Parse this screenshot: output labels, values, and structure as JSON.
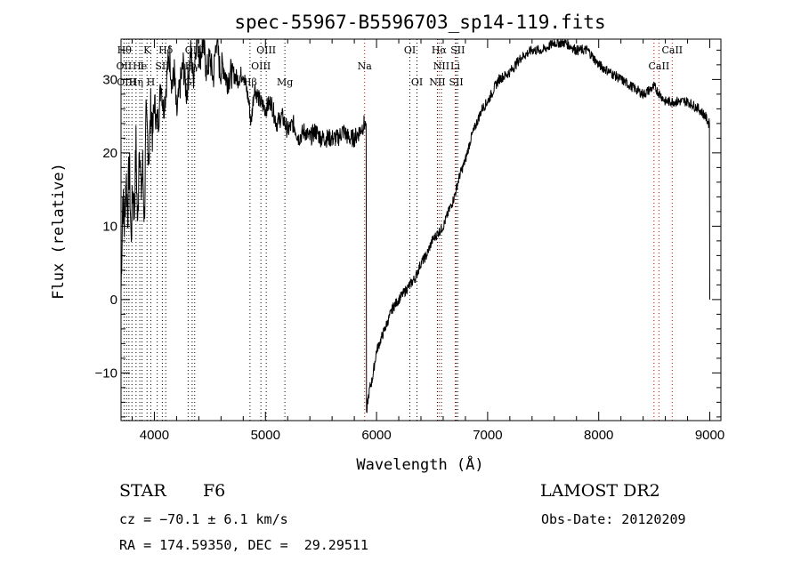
{
  "chart_data": {
    "type": "line",
    "title": "spec-55967-B5596703_sp14-119.fits",
    "xlabel": "Wavelength (Å)",
    "ylabel": "Flux (relative)",
    "xlim": [
      3700,
      9100
    ],
    "ylim": [
      -16.5,
      35.5
    ],
    "xticks": [
      4000,
      5000,
      6000,
      7000,
      8000,
      9000
    ],
    "yticks": [
      -10,
      0,
      10,
      20,
      30
    ],
    "grid": false,
    "series": [
      {
        "color": "#000000",
        "x": [
          3700,
          3715,
          3730,
          3745,
          3760,
          3775,
          3790,
          3805,
          3820,
          3835,
          3850,
          3865,
          3880,
          3895,
          3910,
          3925,
          3940,
          3955,
          3970,
          3985,
          4000,
          4020,
          4040,
          4060,
          4080,
          4100,
          4120,
          4140,
          4160,
          4180,
          4200,
          4230,
          4260,
          4290,
          4310,
          4330,
          4350,
          4380,
          4410,
          4440,
          4470,
          4500,
          4530,
          4560,
          4590,
          4620,
          4650,
          4700,
          4750,
          4800,
          4850,
          4870,
          4900,
          4950,
          5000,
          5050,
          5100,
          5150,
          5200,
          5250,
          5300,
          5350,
          5400,
          5450,
          5500,
          5550,
          5600,
          5650,
          5700,
          5750,
          5800,
          5850,
          5890,
          5900,
          5910,
          5920,
          5940,
          5960,
          5980,
          6000,
          6050,
          6100,
          6150,
          6200,
          6250,
          6300,
          6350,
          6400,
          6450,
          6500,
          6550,
          6600,
          6650,
          6700,
          6750,
          6800,
          6850,
          6900,
          6950,
          7000,
          7100,
          7200,
          7300,
          7400,
          7500,
          7600,
          7700,
          7800,
          7900,
          8000,
          8100,
          8200,
          8300,
          8400,
          8500,
          8600,
          8700,
          8800,
          8900,
          8960,
          8990,
          9000
        ],
        "values": [
          1,
          14,
          10,
          17,
          12,
          19,
          8,
          15,
          12,
          21,
          9,
          23,
          14,
          18,
          11,
          24,
          22,
          20,
          27,
          22,
          27,
          24,
          25,
          30,
          26,
          28,
          32,
          33,
          29,
          31,
          25,
          29,
          32,
          28,
          31,
          34,
          30,
          36,
          33,
          35,
          31,
          33,
          30,
          36,
          31,
          32,
          30,
          31,
          30,
          31,
          27,
          24,
          29,
          27,
          26,
          27,
          24,
          25,
          23,
          24,
          22,
          23,
          22,
          23,
          22,
          22,
          22,
          22,
          23,
          22,
          22,
          23,
          24,
          24,
          -16,
          -14,
          -12,
          -11,
          -9,
          -7,
          -5,
          -3,
          -1,
          0,
          1,
          2,
          3,
          5,
          6,
          8,
          9,
          10,
          12,
          14,
          17,
          19,
          22,
          24,
          26,
          27,
          30,
          31,
          33,
          34,
          34,
          35,
          35,
          34,
          34,
          32,
          31,
          30,
          29,
          28,
          29,
          27,
          27,
          27,
          26,
          25,
          24,
          0
        ]
      }
    ],
    "lines": [
      {
        "wl": 3727,
        "color": "#000000"
      },
      {
        "wl": 3750,
        "color": "#000000"
      },
      {
        "wl": 3771,
        "color": "#000000"
      },
      {
        "wl": 3798,
        "color": "#000000"
      },
      {
        "wl": 3835,
        "color": "#000000"
      },
      {
        "wl": 3869,
        "color": "#000000"
      },
      {
        "wl": 3889,
        "color": "#000000"
      },
      {
        "wl": 3934,
        "color": "#000000"
      },
      {
        "wl": 3968,
        "color": "#000000"
      },
      {
        "wl": 4026,
        "color": "#000000"
      },
      {
        "wl": 4072,
        "color": "#000000"
      },
      {
        "wl": 4102,
        "color": "#000000"
      },
      {
        "wl": 4304,
        "color": "#000000"
      },
      {
        "wl": 4340,
        "color": "#000000"
      },
      {
        "wl": 4363,
        "color": "#000000"
      },
      {
        "wl": 4861,
        "color": "#000000"
      },
      {
        "wl": 4959,
        "color": "#000000"
      },
      {
        "wl": 5007,
        "color": "#000000"
      },
      {
        "wl": 5175,
        "color": "#000000"
      },
      {
        "wl": 5893,
        "color": "#cc0000"
      },
      {
        "wl": 6300,
        "color": "#000000"
      },
      {
        "wl": 6364,
        "color": "#000000"
      },
      {
        "wl": 6548,
        "color": "#000000"
      },
      {
        "wl": 6563,
        "color": "#cc0000"
      },
      {
        "wl": 6584,
        "color": "#000000"
      },
      {
        "wl": 6708,
        "color": "#cc0000"
      },
      {
        "wl": 6717,
        "color": "#000000"
      },
      {
        "wl": 6731,
        "color": "#000000"
      },
      {
        "wl": 8498,
        "color": "#cc0000"
      },
      {
        "wl": 8542,
        "color": "#cc0000"
      },
      {
        "wl": 8662,
        "color": "#cc0000"
      }
    ],
    "line_labels": [
      {
        "text": "Hθ",
        "wl": 3730,
        "row": 0
      },
      {
        "text": "K",
        "wl": 3934,
        "row": 0
      },
      {
        "text": "Hδ",
        "wl": 4102,
        "row": 0
      },
      {
        "text": "OIII",
        "wl": 4363,
        "row": 0
      },
      {
        "text": "OIII",
        "wl": 5007,
        "row": 0
      },
      {
        "text": "OI",
        "wl": 6300,
        "row": 0
      },
      {
        "text": "Hα",
        "wl": 6563,
        "row": 0
      },
      {
        "text": "SII",
        "wl": 6731,
        "row": 0
      },
      {
        "text": "CaII",
        "wl": 8662,
        "row": 0
      },
      {
        "text": "OII",
        "wl": 3727,
        "row": 1
      },
      {
        "text": "He",
        "wl": 3869,
        "row": 1
      },
      {
        "text": "I",
        "wl": 3889,
        "row": 1
      },
      {
        "text": "SII",
        "wl": 4072,
        "row": 1
      },
      {
        "text": "Hγ",
        "wl": 4340,
        "row": 1
      },
      {
        "text": "OIII",
        "wl": 4959,
        "row": 1
      },
      {
        "text": "Na",
        "wl": 5893,
        "row": 1
      },
      {
        "text": "NII",
        "wl": 6584,
        "row": 1
      },
      {
        "text": "Li",
        "wl": 6708,
        "row": 1
      },
      {
        "text": "CaII",
        "wl": 8542,
        "row": 1
      },
      {
        "text": "OIII",
        "wl": 3750,
        "row": 2
      },
      {
        "text": "Hη",
        "wl": 3835,
        "row": 2
      },
      {
        "text": "H",
        "wl": 3968,
        "row": 2
      },
      {
        "text": "G",
        "wl": 4304,
        "row": 2
      },
      {
        "text": "Hβ",
        "wl": 4861,
        "row": 2
      },
      {
        "text": "Mg",
        "wl": 5175,
        "row": 2
      },
      {
        "text": "OI",
        "wl": 6364,
        "row": 2
      },
      {
        "text": "NII",
        "wl": 6548,
        "row": 2
      },
      {
        "text": "SII",
        "wl": 6717,
        "row": 2
      }
    ]
  },
  "footer": {
    "object_type": "STAR",
    "subclass": "F6",
    "redshift": "cz = −70.1 ± 6.1 km/s",
    "coords": "RA = 174.59350, DEC =  29.29511",
    "survey": "LAMOST DR2",
    "obs_date": "Obs-Date: 20120209"
  }
}
